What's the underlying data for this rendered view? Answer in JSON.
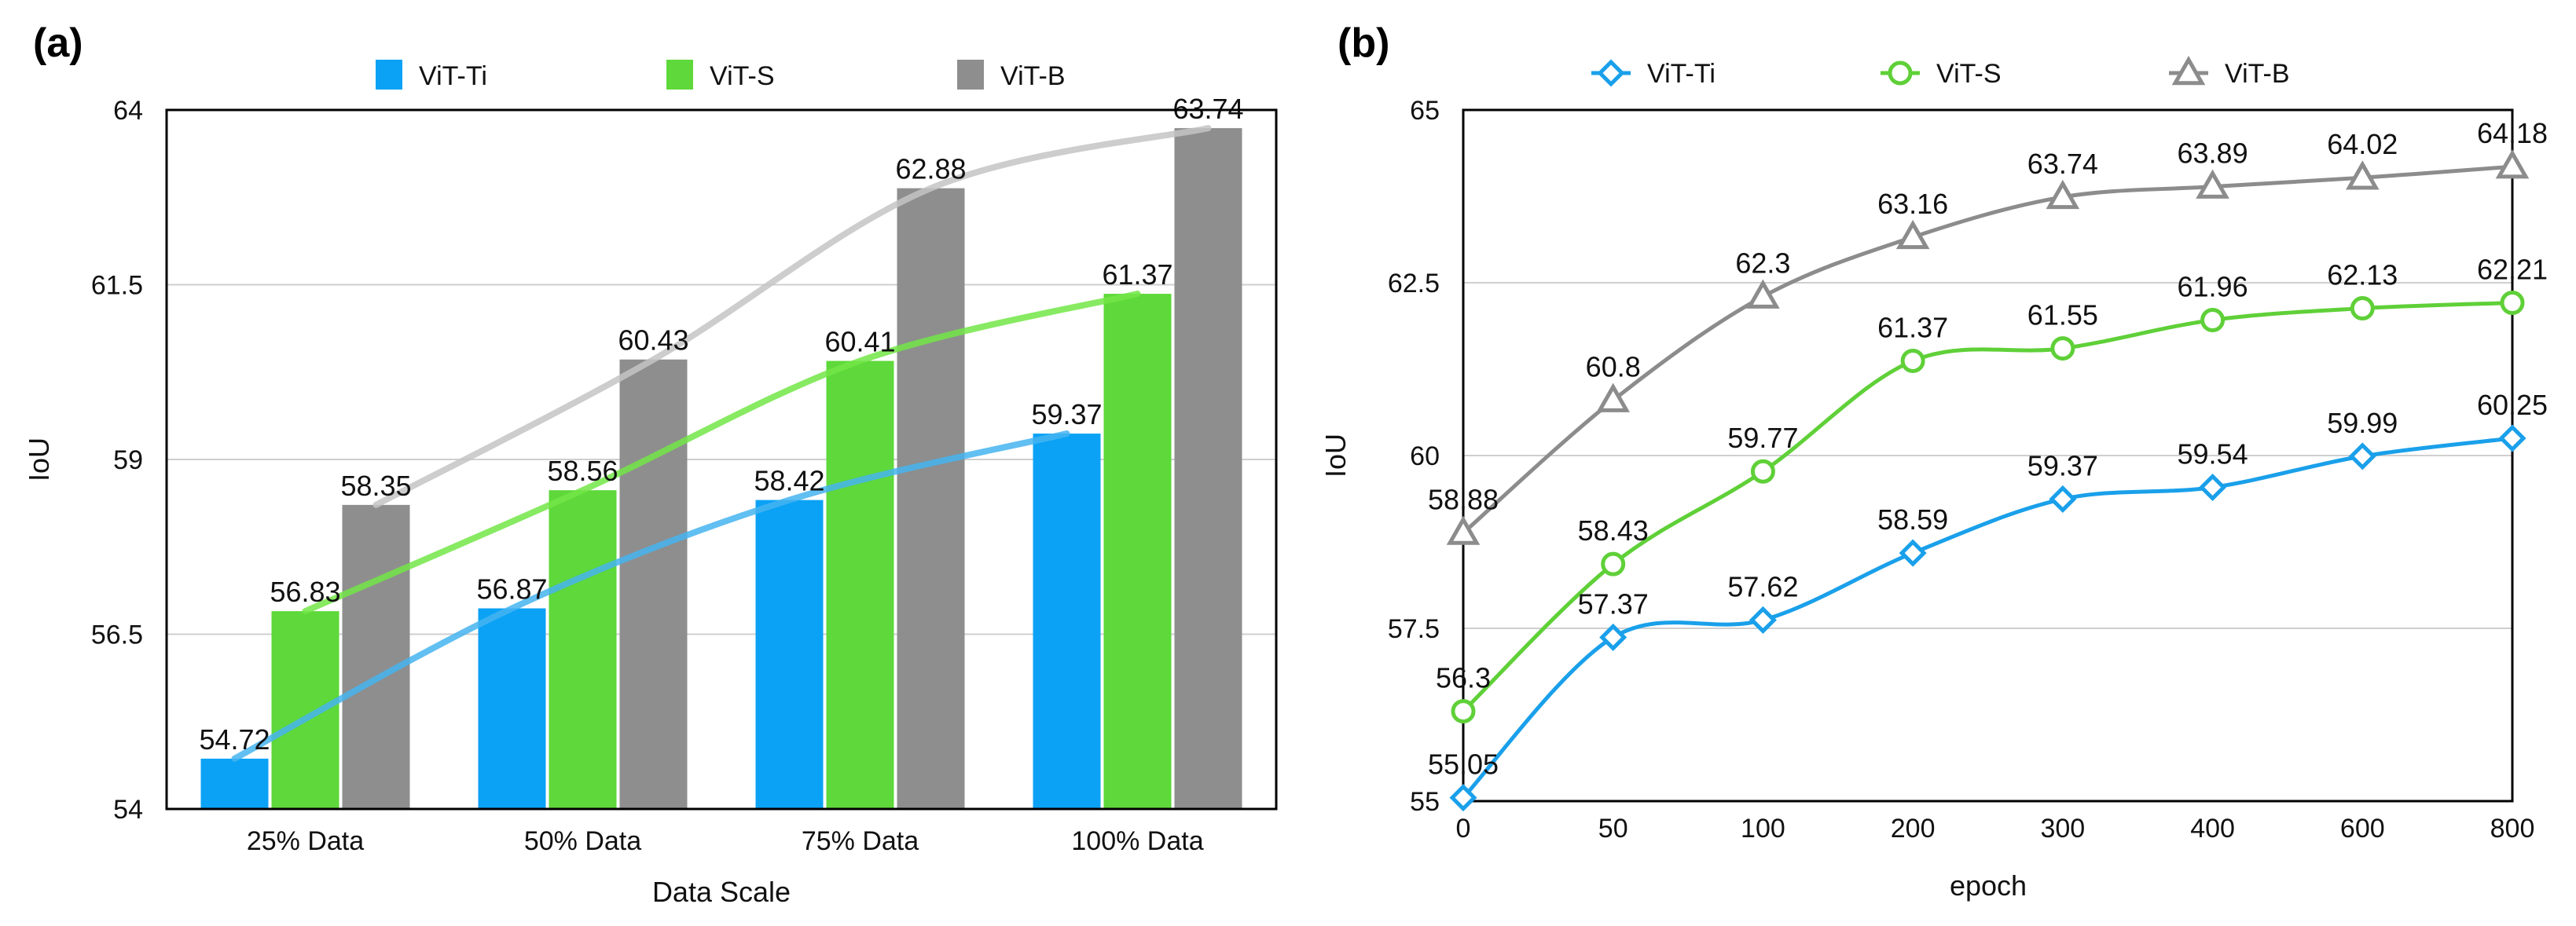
{
  "chart_data": [
    {
      "panel": "(a)",
      "type": "bar",
      "title": "",
      "xlabel": "Data Scale",
      "ylabel": "IoU",
      "ylim": [
        54,
        64
      ],
      "yticks": [
        "54",
        "56.5",
        "59",
        "61.5",
        "64"
      ],
      "categories": [
        "25% Data",
        "50% Data",
        "75% Data",
        "100% Data"
      ],
      "legend_position": "top",
      "grid": true,
      "series": [
        {
          "name": "ViT-Ti",
          "color": "#0ba2f5",
          "trend_color": "#45b4f0",
          "values": [
            54.72,
            56.87,
            58.42,
            59.37
          ],
          "labels": [
            "54.72",
            "56.87",
            "58.42",
            "59.37"
          ]
        },
        {
          "name": "ViT-S",
          "color": "#5ed83a",
          "trend_color": "#72e646",
          "values": [
            56.83,
            58.56,
            60.41,
            61.37
          ],
          "labels": [
            "56.83",
            "58.56",
            "60.41",
            "61.37"
          ]
        },
        {
          "name": "ViT-B",
          "color": "#8e8e8e",
          "trend_color": "#c4c4c4",
          "values": [
            58.35,
            60.43,
            62.88,
            63.74
          ],
          "labels": [
            "58.35",
            "60.43",
            "62.88",
            "63.74"
          ]
        }
      ]
    },
    {
      "panel": "(b)",
      "type": "line",
      "title": "",
      "xlabel": "epoch",
      "ylabel": "IoU",
      "ylim": [
        55,
        65
      ],
      "yticks": [
        "55",
        "57.5",
        "60",
        "62.5",
        "65"
      ],
      "x": [
        "0",
        "50",
        "100",
        "200",
        "300",
        "400",
        "600",
        "800"
      ],
      "legend_position": "top",
      "grid": true,
      "series": [
        {
          "name": "ViT-Ti",
          "marker": "diamond",
          "color": "#1aa0ea",
          "values": [
            55.05,
            57.37,
            57.62,
            58.59,
            59.37,
            59.54,
            59.99,
            60.25
          ],
          "labels": [
            "55.05",
            "57.37",
            "57.62",
            "58.59",
            "59.37",
            "59.54",
            "59.99",
            "60.25"
          ]
        },
        {
          "name": "ViT-S",
          "marker": "circle",
          "color": "#5fd038",
          "values": [
            56.3,
            58.43,
            59.77,
            61.37,
            61.55,
            61.96,
            62.13,
            62.21
          ],
          "labels": [
            "56.3",
            "58.43",
            "59.77",
            "61.37",
            "61.55",
            "61.96",
            "62.13",
            "62.21"
          ]
        },
        {
          "name": "ViT-B",
          "marker": "triangle",
          "color": "#8c8c8c",
          "values": [
            58.88,
            60.8,
            62.3,
            63.16,
            63.74,
            63.89,
            64.02,
            64.18
          ],
          "labels": [
            "58.88",
            "60.8",
            "62.3",
            "63.16",
            "63.74",
            "63.89",
            "64.02",
            "64.18"
          ]
        }
      ]
    }
  ]
}
